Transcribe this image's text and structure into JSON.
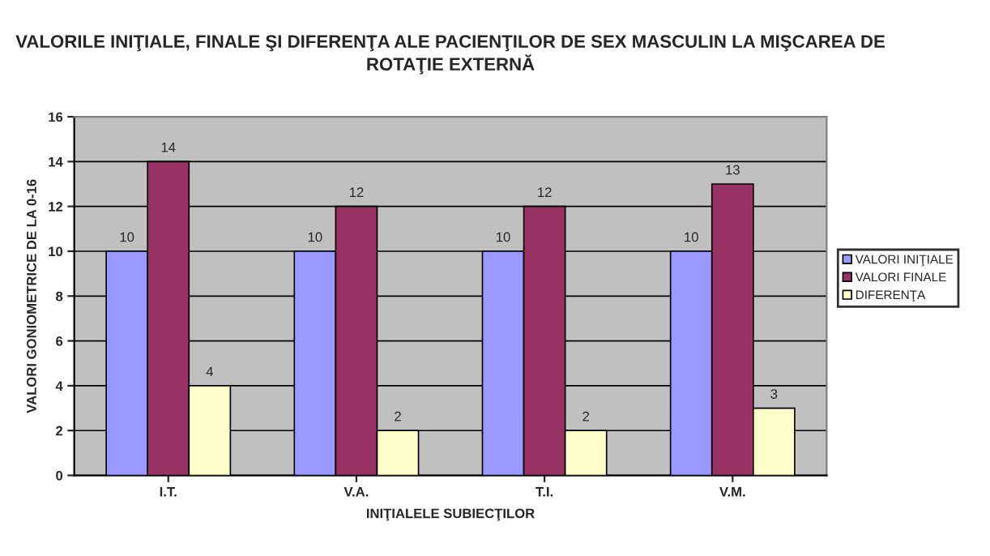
{
  "chart_data": {
    "type": "bar",
    "title": "VALORILE INIŢIALE, FINALE ŞI DIFERENŢA ALE PACIENŢILOR DE SEX MASCULIN LA MIŞCAREA DE ROTAŢIE EXTERNĂ",
    "xlabel": "INIŢIALELE SUBIECŢILOR",
    "ylabel": "VALORI GONIOMETRICE DE LA 0-16",
    "categories": [
      "I.T.",
      "V.A.",
      "T.I.",
      "V.M."
    ],
    "series": [
      {
        "name": "VALORI INIŢIALE",
        "color": "#9999ff",
        "values": [
          10,
          10,
          10,
          10
        ]
      },
      {
        "name": "VALORI FINALE",
        "color": "#993366",
        "values": [
          14,
          12,
          12,
          13
        ]
      },
      {
        "name": "DIFERENŢA",
        "color": "#ffffcc",
        "values": [
          4,
          2,
          2,
          3
        ]
      }
    ],
    "ylim": [
      0,
      16
    ],
    "yticks": [
      0,
      2,
      4,
      6,
      8,
      10,
      12,
      14,
      16
    ],
    "grid": "y",
    "legend": "right",
    "data_labels": true
  }
}
